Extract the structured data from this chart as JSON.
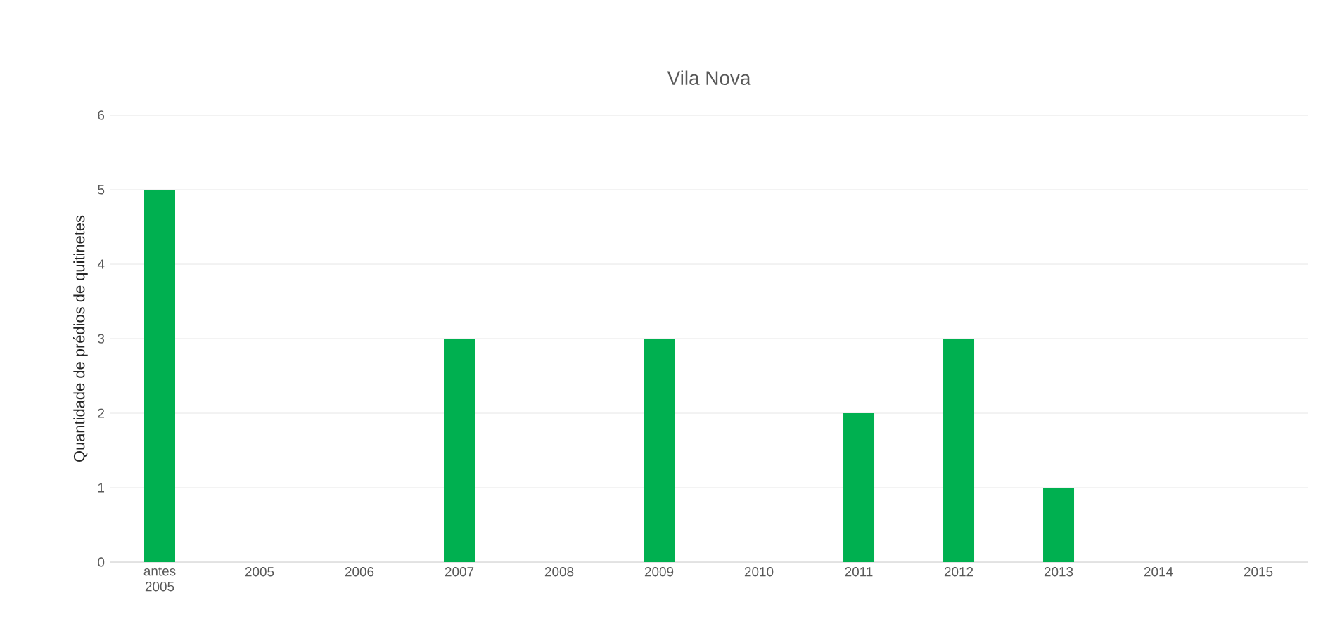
{
  "chart_data": {
    "type": "bar",
    "title": "Vila Nova",
    "ylabel": "Quantidade de prédios de quitinetes",
    "categories": [
      "antes 2005",
      "2005",
      "2006",
      "2007",
      "2008",
      "2009",
      "2010",
      "2011",
      "2012",
      "2013",
      "2014",
      "2015"
    ],
    "values": [
      5,
      0,
      0,
      3,
      0,
      3,
      0,
      2,
      3,
      1,
      0,
      0
    ],
    "color": "#00b050",
    "ylim": [
      0,
      6
    ],
    "yticks": [
      0,
      1,
      2,
      3,
      4,
      5,
      6
    ],
    "grid": "y"
  }
}
